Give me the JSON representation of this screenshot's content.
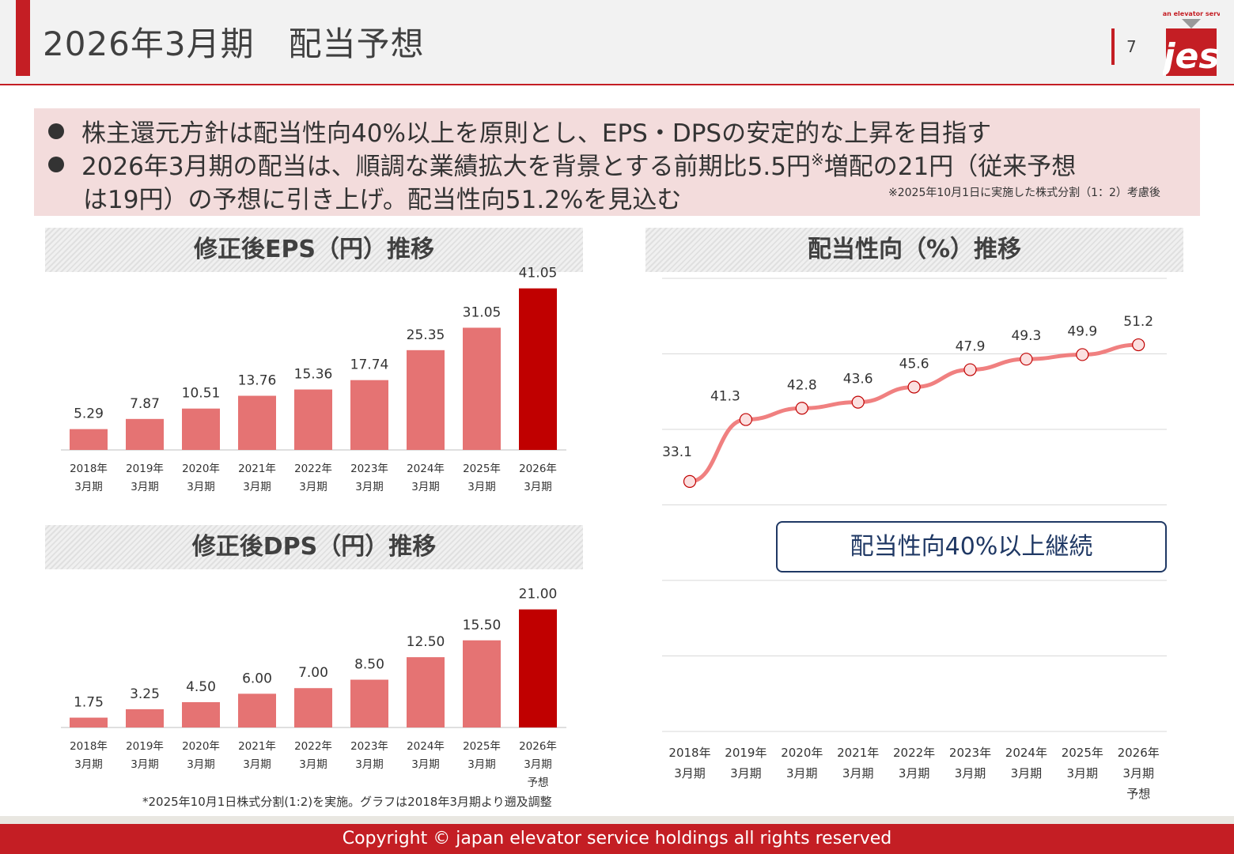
{
  "header": {
    "title": "2026年3月期　配当予想",
    "page_number": "7",
    "logo": {
      "top_text": "japan elevator service",
      "mark": "jes"
    }
  },
  "summary": {
    "bullet1": "株主還元方針は配当性向40%以上を原則とし、EPS・DPSの安定的な上昇を目指す",
    "bullet2_main": "2026年3月期の配当は、順調な業績拡大を背景とする前期比5.5円",
    "bullet2_mark": "※",
    "bullet2_rest": "増配の21円（従来予想",
    "bullet2_line2": "は19円）の予想に引き上げ。配当性向51.2%を見込む",
    "split_note": "※2025年10月1日に実施した株式分割（1：2）考慮後"
  },
  "eps_panel": {
    "heading": "修正後EPS（円）推移"
  },
  "dps_panel": {
    "heading": "修正後DPS（円）推移"
  },
  "ratio_panel": {
    "heading": "配当性向（%）推移",
    "callout": "配当性向40%以上継続"
  },
  "footnote": "*2025年10月1日株式分割(1:2)を実施。グラフは2018年3月期より遡及調整",
  "footer": {
    "copyright": "Copyright © japan elevator service holdings all rights reserved"
  },
  "colors": {
    "brand_red": "#c41e24",
    "bar_pink": "#e57373",
    "bar_highlight": "#c00000",
    "line_pink": "#f08080",
    "navy": "#1f3864"
  },
  "chart_data": [
    {
      "type": "bar",
      "title": "修正後EPS（円）推移",
      "categories": [
        [
          "2018年",
          "3月期"
        ],
        [
          "2019年",
          "3月期"
        ],
        [
          "2020年",
          "3月期"
        ],
        [
          "2021年",
          "3月期"
        ],
        [
          "2022年",
          "3月期"
        ],
        [
          "2023年",
          "3月期"
        ],
        [
          "2024年",
          "3月期"
        ],
        [
          "2025年",
          "3月期"
        ],
        [
          "2026年",
          "3月期"
        ]
      ],
      "values": [
        5.29,
        7.87,
        10.51,
        13.76,
        15.36,
        17.74,
        25.35,
        31.05,
        41.05
      ],
      "labels": [
        "5.29",
        "7.87",
        "10.51",
        "13.76",
        "15.36",
        "17.74",
        "25.35",
        "31.05",
        "41.05"
      ],
      "highlight_index": 8,
      "ylim": [
        0,
        44
      ]
    },
    {
      "type": "bar",
      "title": "修正後DPS（円）推移",
      "categories": [
        [
          "2018年",
          "3月期"
        ],
        [
          "2019年",
          "3月期"
        ],
        [
          "2020年",
          "3月期"
        ],
        [
          "2021年",
          "3月期"
        ],
        [
          "2022年",
          "3月期"
        ],
        [
          "2023年",
          "3月期"
        ],
        [
          "2024年",
          "3月期"
        ],
        [
          "2025年",
          "3月期"
        ],
        [
          "2026年",
          "3月期",
          "予想"
        ]
      ],
      "values": [
        1.75,
        3.25,
        4.5,
        6.0,
        7.0,
        8.5,
        12.5,
        15.5,
        21.0
      ],
      "labels": [
        "1.75",
        "3.25",
        "4.50",
        "6.00",
        "7.00",
        "8.50",
        "12.50",
        "15.50",
        "21.00"
      ],
      "highlight_index": 8,
      "ylim": [
        0,
        22.5
      ]
    },
    {
      "type": "line",
      "title": "配当性向（%）推移",
      "categories": [
        [
          "2018年",
          "3月期"
        ],
        [
          "2019年",
          "3月期"
        ],
        [
          "2020年",
          "3月期"
        ],
        [
          "2021年",
          "3月期"
        ],
        [
          "2022年",
          "3月期"
        ],
        [
          "2023年",
          "3月期"
        ],
        [
          "2024年",
          "3月期"
        ],
        [
          "2025年",
          "3月期"
        ],
        [
          "2026年",
          "3月期",
          "予想"
        ]
      ],
      "values": [
        33.1,
        41.3,
        42.8,
        43.6,
        45.6,
        47.9,
        49.3,
        49.9,
        51.2
      ],
      "labels": [
        "33.1",
        "41.3",
        "42.8",
        "43.6",
        "45.6",
        "47.9",
        "49.3",
        "49.9",
        "51.2"
      ],
      "ylim": [
        0,
        60
      ],
      "grid": true
    }
  ]
}
